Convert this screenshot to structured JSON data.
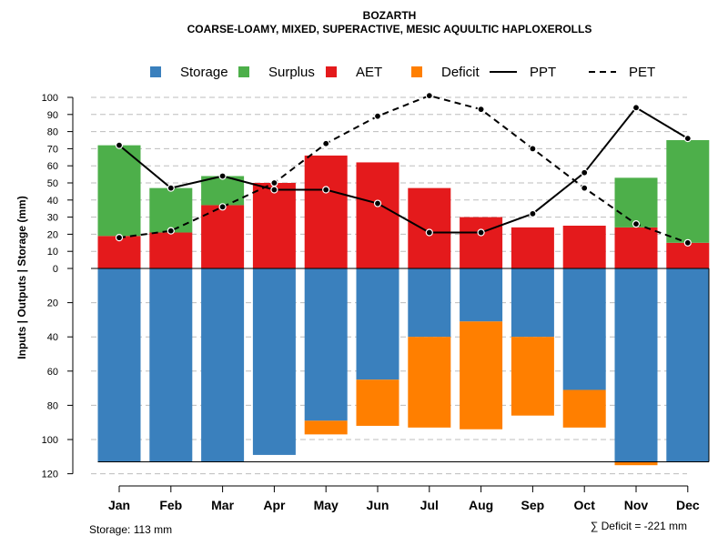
{
  "chart_data": {
    "type": "bar",
    "title": "BOZARTH",
    "subtitle": "COARSE-LOAMY, MIXED, SUPERACTIVE, MESIC AQUULTIC HAPLOXEROLLS",
    "ylabel": "Inputs | Outputs | Storage    (mm)",
    "categories": [
      "Jan",
      "Feb",
      "Mar",
      "Apr",
      "May",
      "Jun",
      "Jul",
      "Aug",
      "Sep",
      "Oct",
      "Nov",
      "Dec"
    ],
    "y_ticks_above": [
      "0",
      "10",
      "20",
      "30",
      "40",
      "50",
      "60",
      "70",
      "80",
      "90",
      "100"
    ],
    "y_ticks_below": [
      "20",
      "40",
      "60",
      "80",
      "100",
      "120"
    ],
    "ylim_above": [
      0,
      100
    ],
    "ylim_below": [
      0,
      120
    ],
    "storage_capacity": 113,
    "series": [
      {
        "name": "Storage",
        "color": "#3a80bd",
        "values": [
          113,
          113,
          113,
          109,
          89,
          65,
          40,
          31,
          40,
          71,
          113,
          113
        ]
      },
      {
        "name": "Surplus",
        "color": "#4daf4a",
        "values": [
          53,
          26,
          17,
          0,
          0,
          0,
          0,
          0,
          0,
          0,
          29,
          60
        ]
      },
      {
        "name": "AET",
        "color": "#e41a1c",
        "values": [
          19,
          21,
          37,
          50,
          66,
          62,
          47,
          30,
          24,
          25,
          24,
          15
        ]
      },
      {
        "name": "Deficit",
        "color": "#ff7f00",
        "values": [
          0,
          0,
          0,
          0,
          8,
          27,
          53,
          63,
          46,
          22,
          2,
          0
        ]
      },
      {
        "name": "PPT",
        "color": "#000000",
        "values": [
          72,
          47,
          54,
          46,
          46,
          38,
          21,
          21,
          32,
          56,
          94,
          76
        ]
      },
      {
        "name": "PET",
        "color": "#000000",
        "values": [
          18,
          22,
          36,
          50,
          73,
          89,
          101,
          93,
          70,
          47,
          26,
          15
        ]
      }
    ],
    "legend": [
      {
        "label": "Storage",
        "kind": "box",
        "color": "#3a80bd"
      },
      {
        "label": "Surplus",
        "kind": "box",
        "color": "#4daf4a"
      },
      {
        "label": "AET",
        "kind": "box",
        "color": "#e41a1c"
      },
      {
        "label": "Deficit",
        "kind": "box",
        "color": "#ff7f00"
      },
      {
        "label": "PPT",
        "kind": "solid",
        "color": "#000000"
      },
      {
        "label": "PET",
        "kind": "dashed",
        "color": "#000000"
      }
    ],
    "legend_position": "top",
    "grid": true,
    "footnote_left": "Storage: 113 mm",
    "footnote_right": "∑ Deficit = -221 mm"
  }
}
